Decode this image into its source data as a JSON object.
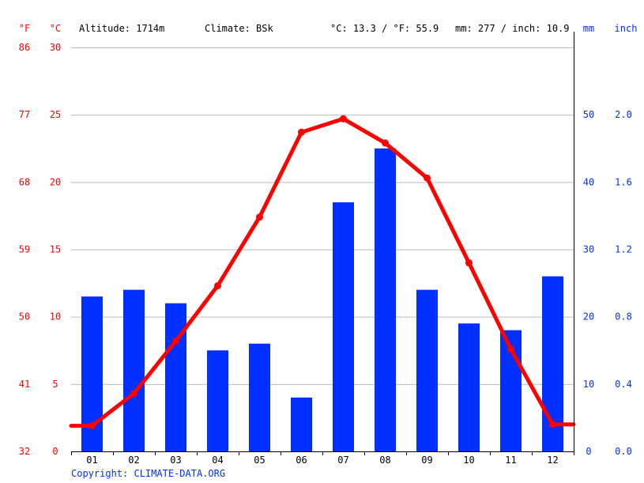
{
  "header": {
    "unit_f": "°F",
    "unit_c": "°C",
    "altitude": "Altitude: 1714m",
    "climate": "Climate: BSk",
    "temp_avg": "°C: 13.3 / °F: 55.9",
    "precip_total": "mm: 277 / inch: 10.9",
    "unit_mm": "mm",
    "unit_inch": "inch"
  },
  "copyright": "Copyright: CLIMATE-DATA.ORG",
  "colors": {
    "temperature": "#ff0000",
    "precipitation": "#0030ff",
    "grid": "#bbbbbb",
    "axis": "#000000"
  },
  "chart_data": {
    "type": "bar",
    "categories": [
      "01",
      "02",
      "03",
      "04",
      "05",
      "06",
      "07",
      "08",
      "09",
      "10",
      "11",
      "12"
    ],
    "series": [
      {
        "type": "bar",
        "axis": "right-mm",
        "values": [
          23,
          24,
          22,
          15,
          16,
          8,
          37,
          45,
          24,
          19,
          18,
          26
        ]
      },
      {
        "type": "line",
        "axis": "left-celsius",
        "values": [
          1.9,
          4.3,
          8.2,
          12.3,
          17.4,
          23.7,
          24.7,
          22.9,
          20.3,
          14.0,
          7.6,
          2.0
        ]
      }
    ],
    "left_axis_celsius": {
      "ticks": [
        0,
        5,
        10,
        15,
        20,
        25,
        30
      ],
      "ylim": [
        0,
        30
      ]
    },
    "left_axis_fahrenheit": {
      "ticks": [
        32,
        41,
        50,
        59,
        68,
        77,
        86
      ]
    },
    "right_axis_mm": {
      "ticks": [
        0,
        10,
        20,
        30,
        40,
        50
      ],
      "ylim": [
        0,
        60
      ]
    },
    "right_axis_inch": {
      "ticks": [
        "0.0",
        "0.4",
        "0.8",
        "1.2",
        "1.6",
        "2.0"
      ]
    },
    "grid": true,
    "legend": "none"
  }
}
